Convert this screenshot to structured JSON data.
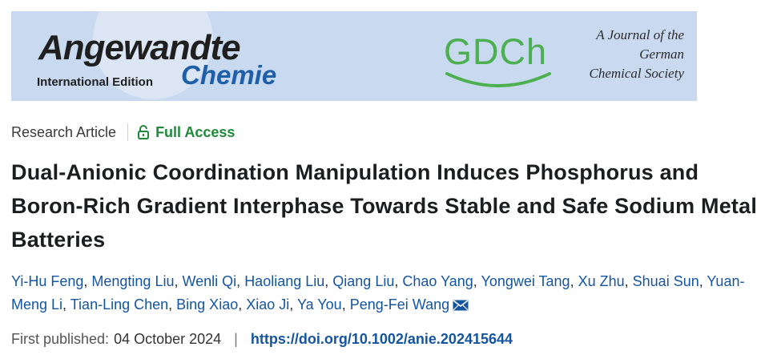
{
  "banner": {
    "journal_name_line1": "Angewandte",
    "journal_name_line2": "Chemie",
    "edition": "International Edition",
    "society_logo": "GDCh",
    "tagline": [
      "A Journal of the",
      "German",
      "Chemical Society"
    ]
  },
  "article": {
    "type": "Research Article",
    "access": "Full Access",
    "title": "Dual-Anionic Coordination Manipulation Induces Phosphorus and Boron-Rich Gradient Interphase Towards Stable and Safe Sodium Metal Batteries",
    "authors": [
      "Yi-Hu Feng",
      "Mengting Liu",
      "Wenli Qi",
      "Haoliang Liu",
      "Qiang Liu",
      "Chao Yang",
      "Yongwei Tang",
      "Xu Zhu",
      "Shuai Sun",
      "Yuan-Meng Li",
      "Tian-Ling Chen",
      "Bing Xiao",
      "Xiao Ji",
      "Ya You",
      "Peng-Fei Wang"
    ],
    "corresponding_icon": "mail-icon",
    "first_published_label": "First published:",
    "first_published_date": "04 October 2024",
    "separator": "|",
    "doi": "https://doi.org/10.1002/anie.202415644"
  },
  "colors": {
    "banner_bg": "#c9d9f0",
    "chemie_blue": "#1f5faa",
    "gdch_green": "#4caf50",
    "access_green": "#1e8a3a",
    "link_blue": "#1555a0"
  }
}
